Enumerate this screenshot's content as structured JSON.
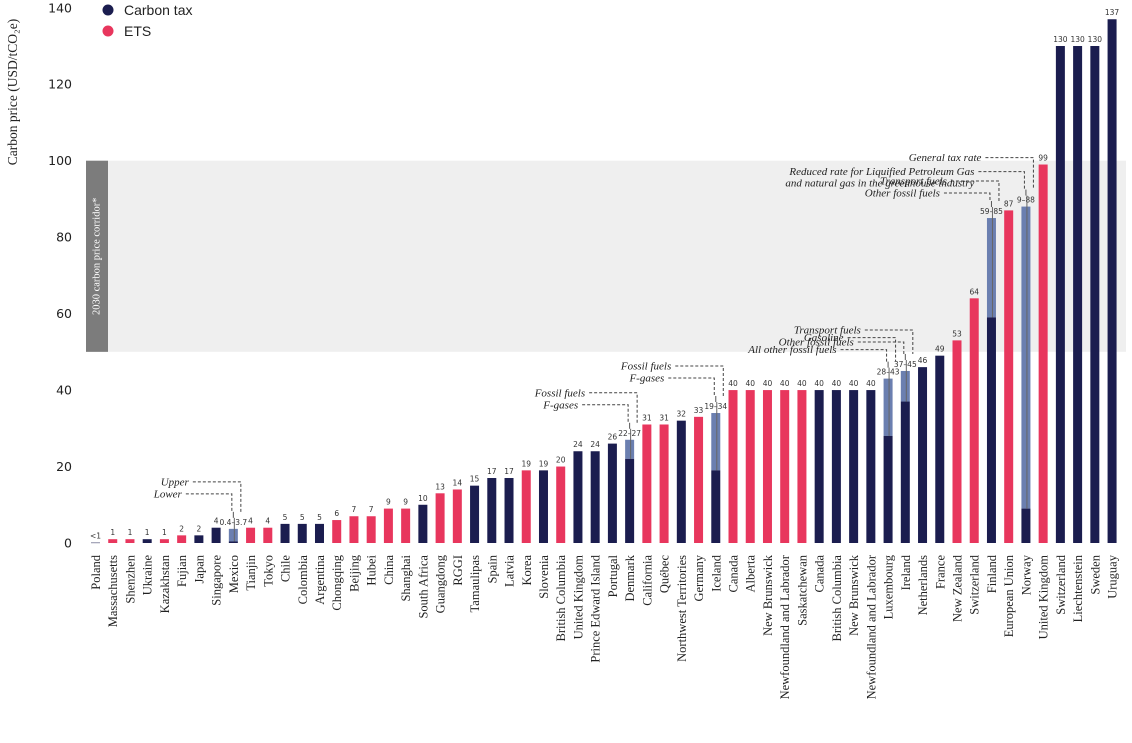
{
  "chart_data": {
    "type": "bar",
    "ylabel": "Carbon price (USD/tCO₂e)",
    "ylim": [
      0,
      140
    ],
    "yticks": [
      0,
      20,
      40,
      60,
      80,
      100,
      120,
      140
    ],
    "corridor": {
      "label": "2030 carbon price corridor*",
      "range": [
        50,
        100
      ]
    },
    "legend": [
      {
        "name": "Carbon tax",
        "color": "#1b1d4f"
      },
      {
        "name": "ETS",
        "color": "#e8365d"
      }
    ],
    "colors": {
      "tax": "#1b1d4f",
      "ets": "#e8365d",
      "range": "#6b7fb0"
    },
    "bars": [
      {
        "category": "Poland",
        "type": "tax",
        "value": 0.1,
        "label": "<1"
      },
      {
        "category": "Massachusetts",
        "type": "ets",
        "value": 1,
        "label": "1"
      },
      {
        "category": "Shenzhen",
        "type": "ets",
        "value": 1,
        "label": "1"
      },
      {
        "category": "Ukraine",
        "type": "tax",
        "value": 1,
        "label": "1"
      },
      {
        "category": "Kazakhstan",
        "type": "ets",
        "value": 1,
        "label": "1"
      },
      {
        "category": "Fujian",
        "type": "ets",
        "value": 2,
        "label": "2"
      },
      {
        "category": "Japan",
        "type": "tax",
        "value": 2,
        "label": "2"
      },
      {
        "category": "Singapore",
        "type": "tax",
        "value": 4,
        "label": "4"
      },
      {
        "category": "Mexico",
        "type": "tax",
        "value": 0.4,
        "value_high": 3.7,
        "label": "0.4–3.7"
      },
      {
        "category": "Tianjin",
        "type": "ets",
        "value": 4,
        "label": "4"
      },
      {
        "category": "Tokyo",
        "type": "ets",
        "value": 4,
        "label": "4"
      },
      {
        "category": "Chile",
        "type": "tax",
        "value": 5,
        "label": "5"
      },
      {
        "category": "Colombia",
        "type": "tax",
        "value": 5,
        "label": "5"
      },
      {
        "category": "Argentina",
        "type": "tax",
        "value": 5,
        "label": "5"
      },
      {
        "category": "Chongqing",
        "type": "ets",
        "value": 6,
        "label": "6"
      },
      {
        "category": "Beijing",
        "type": "ets",
        "value": 7,
        "label": "7"
      },
      {
        "category": "Hubei",
        "type": "ets",
        "value": 7,
        "label": "7"
      },
      {
        "category": "China",
        "type": "ets",
        "value": 9,
        "label": "9"
      },
      {
        "category": "Shanghai",
        "type": "ets",
        "value": 9,
        "label": "9"
      },
      {
        "category": "South Africa",
        "type": "tax",
        "value": 10,
        "label": "10"
      },
      {
        "category": "Guangdong",
        "type": "ets",
        "value": 13,
        "label": "13"
      },
      {
        "category": "RGGI",
        "type": "ets",
        "value": 14,
        "label": "14"
      },
      {
        "category": "Tamaulipas",
        "type": "tax",
        "value": 15,
        "label": "15"
      },
      {
        "category": "Spain",
        "type": "tax",
        "value": 17,
        "label": "17"
      },
      {
        "category": "Latvia",
        "type": "tax",
        "value": 17,
        "label": "17"
      },
      {
        "category": "Korea",
        "type": "ets",
        "value": 19,
        "label": "19"
      },
      {
        "category": "Slovenia",
        "type": "tax",
        "value": 19,
        "label": "19"
      },
      {
        "category": "British Columbia",
        "type": "ets",
        "value": 20,
        "label": "20"
      },
      {
        "category": "United Kingdom",
        "type": "tax",
        "value": 24,
        "label": "24"
      },
      {
        "category": "Prince Edward Island",
        "type": "tax",
        "value": 24,
        "label": "24"
      },
      {
        "category": "Portugal",
        "type": "tax",
        "value": 26,
        "label": "26"
      },
      {
        "category": "Denmark",
        "type": "tax",
        "value": 22,
        "value_high": 27,
        "label": "22–27"
      },
      {
        "category": "California",
        "type": "ets",
        "value": 31,
        "label": "31"
      },
      {
        "category": "Québec",
        "type": "ets",
        "value": 31,
        "label": "31"
      },
      {
        "category": "Northwest Territories",
        "type": "tax",
        "value": 32,
        "label": "32"
      },
      {
        "category": "Germany",
        "type": "ets",
        "value": 33,
        "label": "33"
      },
      {
        "category": "Iceland",
        "type": "tax",
        "value": 19,
        "value_high": 34,
        "label": "19–34"
      },
      {
        "category": "Canada",
        "type": "ets",
        "value": 40,
        "label": "40"
      },
      {
        "category": "Alberta",
        "type": "ets",
        "value": 40,
        "label": "40"
      },
      {
        "category": "New Brunswick",
        "type": "ets",
        "value": 40,
        "label": "40"
      },
      {
        "category": "Newfoundland and Labrador",
        "type": "ets",
        "value": 40,
        "label": "40"
      },
      {
        "category": "Saskatchewan",
        "type": "ets",
        "value": 40,
        "label": "40"
      },
      {
        "category": "Canada",
        "type": "tax",
        "value": 40,
        "label": "40"
      },
      {
        "category": "British Columbia",
        "type": "tax",
        "value": 40,
        "label": "40"
      },
      {
        "category": "New Brunswick",
        "type": "tax",
        "value": 40,
        "label": "40"
      },
      {
        "category": "Newfoundland and Labrador",
        "type": "tax",
        "value": 40,
        "label": "40"
      },
      {
        "category": "Luxembourg",
        "type": "tax",
        "value": 28,
        "value_high": 43,
        "label": "28–43"
      },
      {
        "category": "Ireland",
        "type": "tax",
        "value": 37,
        "value_high": 45,
        "label": "37–45"
      },
      {
        "category": "Netherlands",
        "type": "tax",
        "value": 46,
        "label": "46"
      },
      {
        "category": "France",
        "type": "tax",
        "value": 49,
        "label": "49"
      },
      {
        "category": "New Zealand",
        "type": "ets",
        "value": 53,
        "label": "53"
      },
      {
        "category": "Switzerland",
        "type": "ets",
        "value": 64,
        "label": "64"
      },
      {
        "category": "Finland",
        "type": "tax",
        "value": 59,
        "value_high": 85,
        "label": "59–85"
      },
      {
        "category": "European Union",
        "type": "ets",
        "value": 87,
        "label": "87"
      },
      {
        "category": "Norway",
        "type": "tax",
        "value": 9,
        "value_high": 88,
        "label": "9–88"
      },
      {
        "category": "United Kingdom",
        "type": "ets",
        "value": 99,
        "label": "99"
      },
      {
        "category": "Switzerland",
        "type": "tax",
        "value": 130,
        "label": "130"
      },
      {
        "category": "Liechtenstein",
        "type": "tax",
        "value": 130,
        "label": "130"
      },
      {
        "category": "Sweden",
        "type": "tax",
        "value": 130,
        "label": "130"
      },
      {
        "category": "Uruguay",
        "type": "tax",
        "value": 137,
        "label": "137"
      }
    ],
    "annotations": [
      {
        "bar": 8,
        "level": 0,
        "high": "Upper",
        "low": "Lower"
      },
      {
        "bar": 31,
        "level": 0,
        "high": "Fossil fuels",
        "low": "F-gases"
      },
      {
        "bar": 36,
        "level": 0,
        "high": "Fossil fuels",
        "low": "F-gases"
      },
      {
        "bar": 46,
        "level": 1,
        "high": "Gasoline",
        "low": "All other fossil fuels"
      },
      {
        "bar": 47,
        "level": 1,
        "high": "Transport fuels",
        "low": "Other fossil fuels"
      },
      {
        "bar": 52,
        "level": 2,
        "high": "Transport fuels",
        "low": "Other fossil fuels"
      },
      {
        "bar": 54,
        "level": 3,
        "high": "General tax rate",
        "low": "Reduced rate for Liquified Petroleum Gas",
        "low2": "and natural gas in the greenhouse industry"
      }
    ]
  }
}
